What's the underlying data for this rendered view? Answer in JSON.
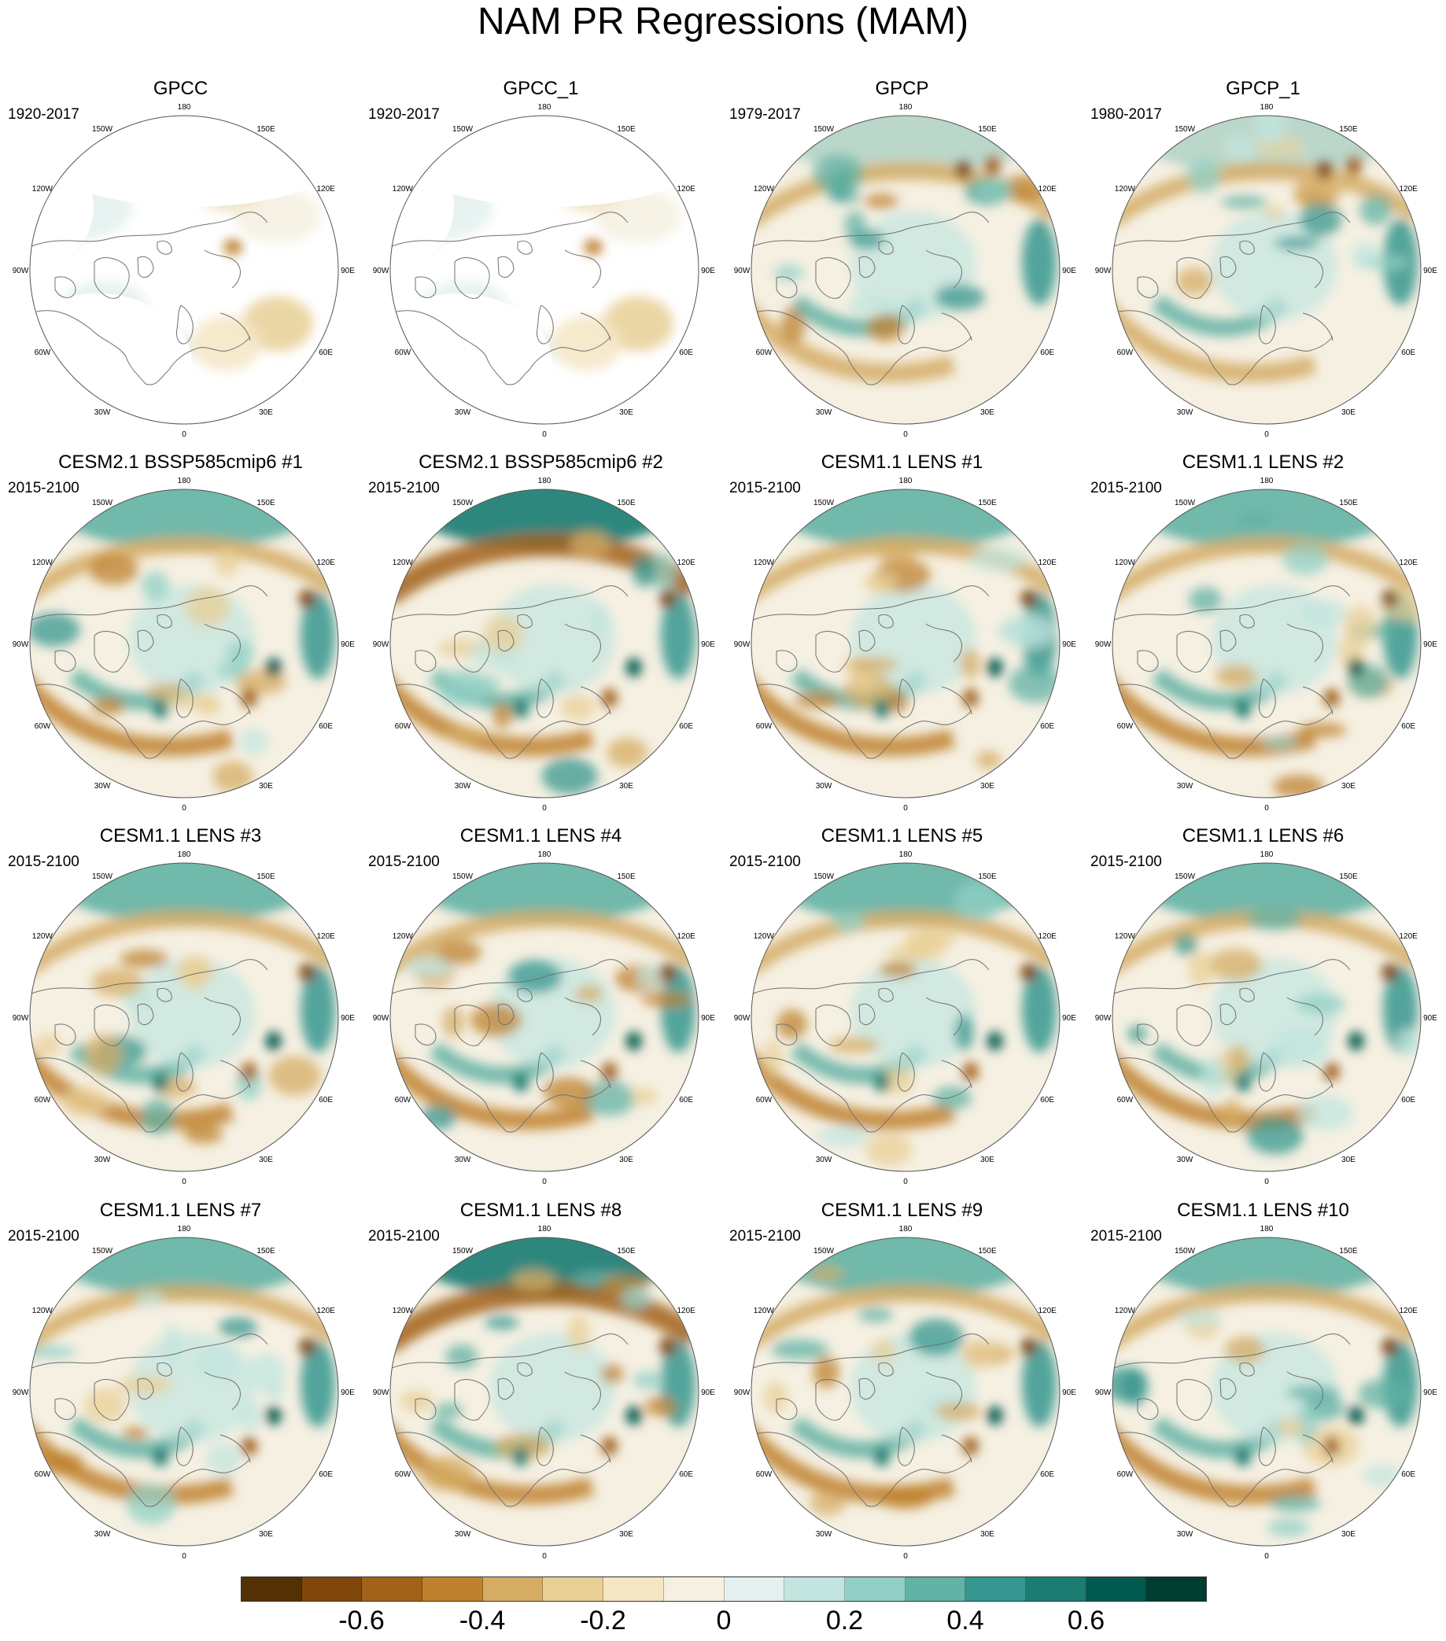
{
  "title": "NAM PR Regressions (MAM)",
  "panels": [
    {
      "title": "GPCC",
      "period": "1920-2017",
      "type": "obs_land"
    },
    {
      "title": "GPCC_1",
      "period": "1920-2017",
      "type": "obs_land"
    },
    {
      "title": "GPCP",
      "period": "1979-2017",
      "type": "obs_full"
    },
    {
      "title": "GPCP_1",
      "period": "1980-2017",
      "type": "obs_full"
    },
    {
      "title": "CESM2.1 BSSP585cmip6 #1",
      "period": "2015-2100",
      "type": "model"
    },
    {
      "title": "CESM2.1 BSSP585cmip6 #2",
      "period": "2015-2100",
      "type": "model_strong"
    },
    {
      "title": "CESM1.1 LENS #1",
      "period": "2015-2100",
      "type": "model"
    },
    {
      "title": "CESM1.1 LENS #2",
      "period": "2015-2100",
      "type": "model"
    },
    {
      "title": "CESM1.1 LENS #3",
      "period": "2015-2100",
      "type": "model"
    },
    {
      "title": "CESM1.1 LENS #4",
      "period": "2015-2100",
      "type": "model"
    },
    {
      "title": "CESM1.1 LENS #5",
      "period": "2015-2100",
      "type": "model"
    },
    {
      "title": "CESM1.1 LENS #6",
      "period": "2015-2100",
      "type": "model"
    },
    {
      "title": "CESM1.1 LENS #7",
      "period": "2015-2100",
      "type": "model"
    },
    {
      "title": "CESM1.1 LENS #8",
      "period": "2015-2100",
      "type": "model_strong"
    },
    {
      "title": "CESM1.1 LENS #9",
      "period": "2015-2100",
      "type": "model"
    },
    {
      "title": "CESM1.1 LENS #10",
      "period": "2015-2100",
      "type": "model"
    }
  ],
  "longitude_labels": [
    "180",
    "150E",
    "120E",
    "90E",
    "60E",
    "30E",
    "0",
    "30W",
    "60W",
    "90W",
    "120W",
    "150W"
  ],
  "colorbar": {
    "colors": [
      "#543005",
      "#7f470a",
      "#a2621a",
      "#bf812d",
      "#d5ac64",
      "#e8cf95",
      "#f5e6c4",
      "#f5f0e2",
      "#e3f0ee",
      "#c2e6df",
      "#92d0c5",
      "#62b2a5",
      "#35978f",
      "#1b7c72",
      "#02594e",
      "#003c30"
    ],
    "tick_labels": [
      "-0.6",
      "-0.4",
      "-0.2",
      "0",
      "0.2",
      "0.4",
      "0.6"
    ]
  }
}
